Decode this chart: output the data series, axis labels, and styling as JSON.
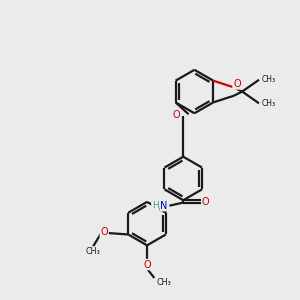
{
  "bg_color": "#ebebeb",
  "bond_color": "#1a1a1a",
  "N_color": "#0000cc",
  "O_color": "#cc0000",
  "H_color": "#4a9a8a",
  "line_width": 1.6,
  "figsize": [
    3.0,
    3.0
  ],
  "dpi": 100,
  "xlim": [
    0,
    10
  ],
  "ylim": [
    0,
    10
  ]
}
